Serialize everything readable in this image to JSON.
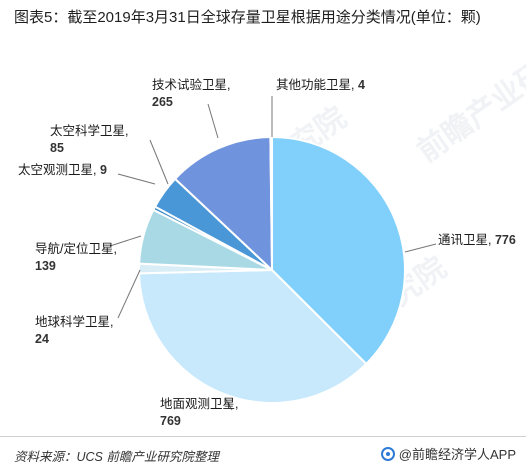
{
  "title": "图表5：截至2019年3月31日全球存量卫星根据用途分类情况(单位：颗)",
  "chart_data": {
    "type": "pie",
    "title": "图表5：截至2019年3月31日全球存量卫星根据用途分类情况(单位：颗)",
    "slices": [
      {
        "label": "通讯卫星",
        "value": 776,
        "color": "#80d0fb"
      },
      {
        "label": "地面观测卫星",
        "value": 769,
        "color": "#c8e8fb"
      },
      {
        "label": "地球科学卫星",
        "value": 24,
        "color": "#d8edf6"
      },
      {
        "label": "导航/定位卫星",
        "value": 139,
        "color": "#aad9e6"
      },
      {
        "label": "太空观测卫星",
        "value": 9,
        "color": "#3e8cc8"
      },
      {
        "label": "太空科学卫星",
        "value": 85,
        "color": "#4a97d8"
      },
      {
        "label": "技术试验卫星",
        "value": 265,
        "color": "#6f93dc"
      },
      {
        "label": "其他功能卫星",
        "value": 4,
        "color": "#8ea3e0"
      }
    ]
  },
  "footer": {
    "source": "资料来源：UCS 前瞻产业研究院整理",
    "brand": "@前瞻经济学人APP"
  },
  "watermark": "前瞻产业研究院"
}
